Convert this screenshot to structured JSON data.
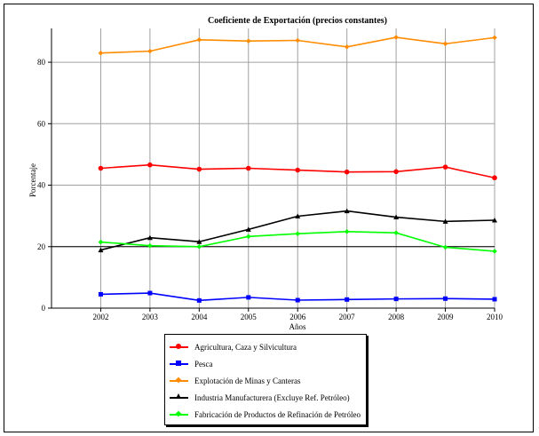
{
  "chart_data": {
    "type": "line",
    "title": "Coeficiente de Exportación (precios constantes)",
    "xlabel": "Años",
    "ylabel": "Porcentaje",
    "x": [
      2002,
      2003,
      2004,
      2005,
      2006,
      2007,
      2008,
      2009,
      2010
    ],
    "xlim": [
      2001,
      2010
    ],
    "ylim": [
      0,
      91
    ],
    "yticks": [
      0,
      20,
      40,
      60,
      80
    ],
    "grid": true,
    "legend_position": "bottom",
    "series": [
      {
        "name": "Agricultura, Caza y Silvicultura",
        "color": "#ff0000",
        "marker": "circle",
        "values": [
          45.5,
          46.6,
          45.2,
          45.5,
          44.9,
          44.3,
          44.4,
          45.9,
          42.4
        ]
      },
      {
        "name": "Pesca",
        "color": "#0000ff",
        "marker": "square",
        "values": [
          4.5,
          4.9,
          2.5,
          3.5,
          2.6,
          2.8,
          3.0,
          3.1,
          2.9
        ]
      },
      {
        "name": "Explotación de Minas y Canteras",
        "color": "#ff8c00",
        "marker": "diamond",
        "values": [
          83.0,
          83.6,
          87.3,
          86.9,
          87.1,
          85.0,
          88.1,
          86.0,
          88.0
        ]
      },
      {
        "name": "Industria Manufacturera (Excluye Ref. Petróleo)",
        "color": "#000000",
        "marker": "triangle",
        "values": [
          18.9,
          22.9,
          21.6,
          25.6,
          29.9,
          31.6,
          29.6,
          28.2,
          28.6
        ]
      },
      {
        "name": "Fabricación de Productos de Refinación de Petróleo",
        "color": "#00ff00",
        "marker": "diamond",
        "values": [
          21.5,
          20.3,
          20.0,
          23.3,
          24.2,
          24.9,
          24.5,
          19.8,
          18.5
        ]
      }
    ]
  }
}
